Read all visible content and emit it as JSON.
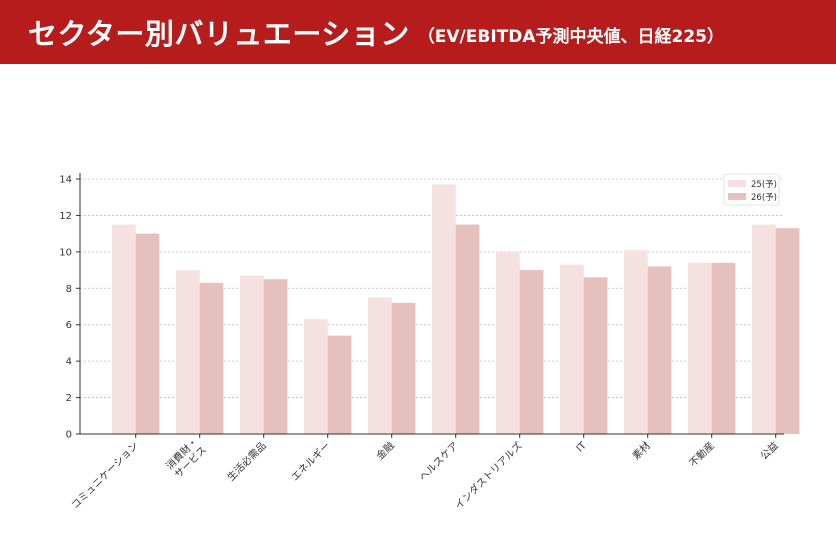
{
  "header": {
    "title": "セクター別バリュエーション",
    "subtitle": "（EV/EBITDA予測中央値、日経225）"
  },
  "colors": {
    "header_bg": "#b71c1c",
    "series_25": "#f5e1e0",
    "series_26": "#e6c0bd",
    "grid": "#bdbdbd",
    "axis": "#333333"
  },
  "chart_data": {
    "type": "bar",
    "title": "セクター別バリュエーション",
    "subtitle": "（EV/EBITDA予測中央値、日経225）",
    "xlabel": "",
    "ylabel": "",
    "ylim": [
      0,
      14
    ],
    "yticks": [
      0,
      2,
      4,
      6,
      8,
      10,
      12,
      14
    ],
    "grid": true,
    "legend_position": "top-right",
    "categories": [
      "コミュニケーション",
      "消費財・\nサービス",
      "生活必需品",
      "エネルギー",
      "金融",
      "ヘルスケア",
      "インダストリアルズ",
      "IT",
      "素材",
      "不動産",
      "公益"
    ],
    "series": [
      {
        "name": "25(予)",
        "color": "#f5e1e0",
        "values": [
          11.5,
          9.0,
          8.7,
          6.3,
          7.5,
          13.7,
          10.0,
          9.3,
          10.1,
          9.4,
          11.5
        ]
      },
      {
        "name": "26(予)",
        "color": "#e6c0bd",
        "values": [
          11.0,
          8.3,
          8.5,
          5.4,
          7.2,
          11.5,
          9.0,
          8.6,
          9.2,
          9.4,
          11.3
        ]
      }
    ]
  }
}
